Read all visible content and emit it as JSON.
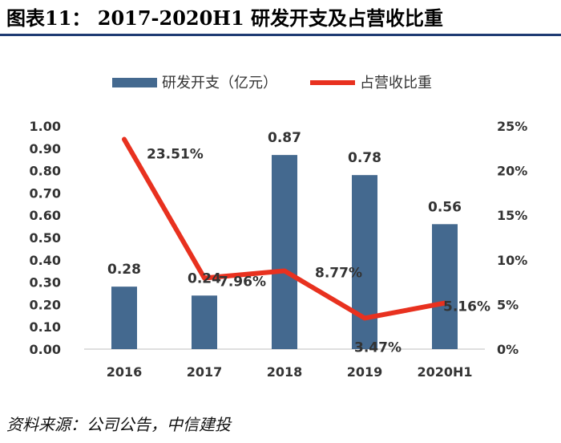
{
  "page": {
    "title": "图表11： 2017-2020H1 研发开支及占营收比重",
    "source": "资料来源：公司公告，中信建投"
  },
  "chart_data": {
    "type": "bar",
    "title": "",
    "categories": [
      "2016",
      "2017",
      "2018",
      "2019",
      "2020H1"
    ],
    "series": [
      {
        "name": "研发开支（亿元）",
        "type": "bar",
        "axis": "left",
        "values": [
          0.28,
          0.24,
          0.87,
          0.78,
          0.56
        ],
        "labels": [
          "0.28",
          "0.24",
          "0.87",
          "0.78",
          "0.56"
        ],
        "color": "#44698f"
      },
      {
        "name": "占营收比重",
        "type": "line",
        "axis": "right",
        "values": [
          23.51,
          7.96,
          8.77,
          3.47,
          5.16
        ],
        "labels": [
          "23.51%",
          "7.96%",
          "8.77%",
          "3.47%",
          "5.16%"
        ],
        "color": "#e8311f"
      }
    ],
    "y_left": {
      "lim": [
        0,
        1.0
      ],
      "ticks": [
        "0.00",
        "0.10",
        "0.20",
        "0.30",
        "0.40",
        "0.50",
        "0.60",
        "0.70",
        "0.80",
        "0.90",
        "1.00"
      ]
    },
    "y_right": {
      "lim": [
        0,
        25
      ],
      "ticks": [
        "0%",
        "5%",
        "10%",
        "15%",
        "20%",
        "25%"
      ]
    },
    "legend": "top",
    "grid": false
  }
}
